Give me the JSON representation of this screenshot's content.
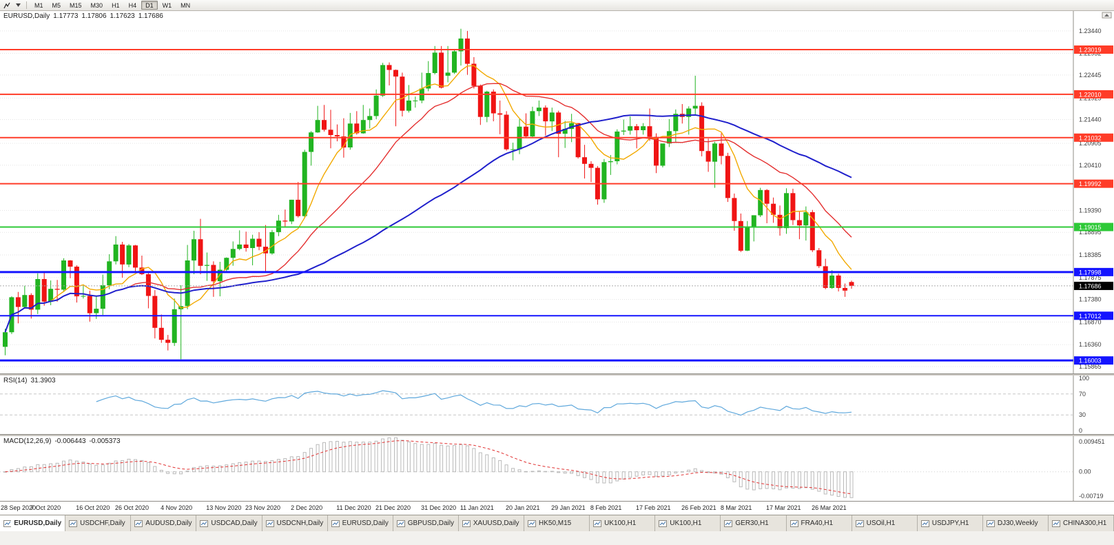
{
  "toolbar": {
    "timeframes": [
      {
        "label": "M1",
        "active": false
      },
      {
        "label": "M5",
        "active": false
      },
      {
        "label": "M15",
        "active": false
      },
      {
        "label": "M30",
        "active": false
      },
      {
        "label": "H1",
        "active": false
      },
      {
        "label": "H4",
        "active": false
      },
      {
        "label": "D1",
        "active": true
      },
      {
        "label": "W1",
        "active": false
      },
      {
        "label": "MN",
        "active": false
      }
    ]
  },
  "header": {
    "symbol": "EURUSD,Daily",
    "open": "1.17773",
    "high": "1.17806",
    "low": "1.17623",
    "close": "1.17686"
  },
  "chart_data": {
    "type": "candlestick",
    "symbol": "EURUSD",
    "timeframe": "Daily",
    "price_top": 1.2389,
    "price_bottom": 1.1571,
    "bull_color": "#21b421",
    "bear_color": "#f01414",
    "price_axis_labels": [
      "1.23440",
      "1.22932",
      "1.22445",
      "1.21925",
      "1.21440",
      "1.20905",
      "1.20410",
      "1.19390",
      "1.18895",
      "1.18385",
      "1.17875",
      "1.17380",
      "1.16870",
      "1.16360",
      "1.15865"
    ],
    "hlines": [
      {
        "price": 1.23019,
        "label": "1.23019",
        "color": "#ff3c28",
        "width": 2
      },
      {
        "price": 1.2201,
        "label": "1.22010",
        "color": "#ff3c28",
        "width": 2
      },
      {
        "price": 1.21032,
        "label": "1.21032",
        "color": "#ff3c28",
        "width": 2
      },
      {
        "price": 1.19992,
        "label": "1.19992",
        "color": "#ff3c28",
        "width": 2
      },
      {
        "price": 1.19015,
        "label": "1.19015",
        "color": "#2dc937",
        "width": 2
      },
      {
        "price": 1.17998,
        "label": "1.17998",
        "color": "#1414ff",
        "width": 3
      },
      {
        "price": 1.17012,
        "label": "1.17012",
        "color": "#1414ff",
        "width": 2
      },
      {
        "price": 1.16003,
        "label": "1.16003",
        "color": "#1414ff",
        "width": 3
      }
    ],
    "current_price": {
      "value": 1.17686,
      "label": "1.17686",
      "bg": "#000000"
    },
    "ma_lines": [
      {
        "name": "ma-fast",
        "period": 8,
        "color": "#f2a900",
        "width": 1.4
      },
      {
        "name": "ma-mid",
        "period": 20,
        "color": "#e43030",
        "width": 1.4
      },
      {
        "name": "ma-slow",
        "period": 50,
        "color": "#2020cc",
        "width": 2
      }
    ],
    "axis_dates": [
      {
        "label": "28 Sep 2020",
        "index": 0
      },
      {
        "label": "7 Oct 2020",
        "index": 7
      },
      {
        "label": "16 Oct 2020",
        "index": 14
      },
      {
        "label": "26 Oct 2020",
        "index": 20
      },
      {
        "label": "4 Nov 2020",
        "index": 27
      },
      {
        "label": "13 Nov 2020",
        "index": 34
      },
      {
        "label": "23 Nov 2020",
        "index": 40
      },
      {
        "label": "2 Dec 2020",
        "index": 47
      },
      {
        "label": "11 Dec 2020",
        "index": 54
      },
      {
        "label": "21 Dec 2020",
        "index": 60
      },
      {
        "label": "31 Dec 2020",
        "index": 67
      },
      {
        "label": "11 Jan 2021",
        "index": 73
      },
      {
        "label": "20 Jan 2021",
        "index": 80
      },
      {
        "label": "29 Jan 2021",
        "index": 87
      },
      {
        "label": "8 Feb 2021",
        "index": 93
      },
      {
        "label": "17 Feb 2021",
        "index": 100
      },
      {
        "label": "26 Feb 2021",
        "index": 107
      },
      {
        "label": "8 Mar 2021",
        "index": 113
      },
      {
        "label": "17 Mar 2021",
        "index": 120
      },
      {
        "label": "26 Mar 2021",
        "index": 127
      }
    ],
    "ohlc": [
      [
        1.1631,
        1.1672,
        1.1612,
        1.1664
      ],
      [
        1.1664,
        1.1745,
        1.166,
        1.1743
      ],
      [
        1.1743,
        1.1755,
        1.1684,
        1.1721
      ],
      [
        1.1721,
        1.1769,
        1.1717,
        1.1748
      ],
      [
        1.1748,
        1.1752,
        1.1695,
        1.1715
      ],
      [
        1.1715,
        1.1797,
        1.1705,
        1.1784
      ],
      [
        1.1784,
        1.1798,
        1.1724,
        1.1733
      ],
      [
        1.1733,
        1.1781,
        1.1725,
        1.1762
      ],
      [
        1.1762,
        1.1782,
        1.1733,
        1.176
      ],
      [
        1.176,
        1.1831,
        1.1755,
        1.1826
      ],
      [
        1.1826,
        1.1827,
        1.1786,
        1.1812
      ],
      [
        1.1812,
        1.1815,
        1.1731,
        1.1745
      ],
      [
        1.1745,
        1.1772,
        1.174,
        1.1746
      ],
      [
        1.1746,
        1.1758,
        1.1688,
        1.1707
      ],
      [
        1.1707,
        1.1746,
        1.1694,
        1.1717
      ],
      [
        1.1717,
        1.1794,
        1.1703,
        1.177
      ],
      [
        1.177,
        1.184,
        1.1761,
        1.1824
      ],
      [
        1.1824,
        1.1881,
        1.1817,
        1.1862
      ],
      [
        1.1862,
        1.1868,
        1.1787,
        1.1817
      ],
      [
        1.1817,
        1.1863,
        1.1811,
        1.186
      ],
      [
        1.186,
        1.1861,
        1.18,
        1.181
      ],
      [
        1.181,
        1.1837,
        1.1793,
        1.1795
      ],
      [
        1.1795,
        1.18,
        1.1718,
        1.1746
      ],
      [
        1.1746,
        1.1759,
        1.165,
        1.1674
      ],
      [
        1.1674,
        1.1704,
        1.164,
        1.1647
      ],
      [
        1.1647,
        1.1658,
        1.1623,
        1.164
      ],
      [
        1.164,
        1.174,
        1.1633,
        1.1716
      ],
      [
        1.1716,
        1.177,
        1.1603,
        1.1723
      ],
      [
        1.1723,
        1.1861,
        1.1716,
        1.1826
      ],
      [
        1.1826,
        1.1893,
        1.1795,
        1.1874
      ],
      [
        1.1874,
        1.192,
        1.1795,
        1.1814
      ],
      [
        1.1814,
        1.1844,
        1.178,
        1.1816
      ],
      [
        1.1816,
        1.1824,
        1.1744,
        1.1779
      ],
      [
        1.1779,
        1.1823,
        1.1745,
        1.1805
      ],
      [
        1.1805,
        1.1833,
        1.1799,
        1.1832
      ],
      [
        1.1832,
        1.1869,
        1.1814,
        1.1852
      ],
      [
        1.1852,
        1.1894,
        1.1849,
        1.1862
      ],
      [
        1.1862,
        1.1891,
        1.1846,
        1.1854
      ],
      [
        1.1854,
        1.1884,
        1.1815,
        1.1875
      ],
      [
        1.1875,
        1.189,
        1.1849,
        1.1857
      ],
      [
        1.1857,
        1.1906,
        1.18,
        1.1842
      ],
      [
        1.1842,
        1.1895,
        1.1839,
        1.189
      ],
      [
        1.189,
        1.1929,
        1.1881,
        1.1916
      ],
      [
        1.1916,
        1.1941,
        1.1903,
        1.1914
      ],
      [
        1.1914,
        1.1963,
        1.1908,
        1.1963
      ],
      [
        1.1963,
        1.2003,
        1.1923,
        1.1926
      ],
      [
        1.1926,
        1.2076,
        1.1922,
        1.2071
      ],
      [
        1.2071,
        1.2118,
        1.204,
        1.2115
      ],
      [
        1.2115,
        1.2175,
        1.2114,
        1.2143
      ],
      [
        1.2143,
        1.2177,
        1.2117,
        1.2121
      ],
      [
        1.2121,
        1.2166,
        1.2079,
        1.2109
      ],
      [
        1.2109,
        1.2133,
        1.2095,
        1.2106
      ],
      [
        1.2106,
        1.2147,
        1.2058,
        1.2081
      ],
      [
        1.2081,
        1.2159,
        1.2076,
        1.2135
      ],
      [
        1.2135,
        1.2163,
        1.211,
        1.2113
      ],
      [
        1.2113,
        1.2177,
        1.2112,
        1.2143
      ],
      [
        1.2143,
        1.2169,
        1.2124,
        1.2152
      ],
      [
        1.2152,
        1.2212,
        1.2145,
        1.2198
      ],
      [
        1.2198,
        1.2272,
        1.2195,
        1.2267
      ],
      [
        1.2267,
        1.2273,
        1.2221,
        1.2256
      ],
      [
        1.2256,
        1.2257,
        1.2129,
        1.2241
      ],
      [
        1.2241,
        1.225,
        1.2151,
        1.2164
      ],
      [
        1.2164,
        1.2222,
        1.216,
        1.2187
      ],
      [
        1.2187,
        1.2196,
        1.2171,
        1.2187
      ],
      [
        1.2187,
        1.225,
        1.2181,
        1.2214
      ],
      [
        1.2214,
        1.2276,
        1.2208,
        1.2249
      ],
      [
        1.2249,
        1.231,
        1.2246,
        1.2295
      ],
      [
        1.2295,
        1.231,
        1.2214,
        1.2216
      ],
      [
        1.2243,
        1.231,
        1.2228,
        1.225
      ],
      [
        1.225,
        1.2303,
        1.2247,
        1.2298
      ],
      [
        1.2298,
        1.2349,
        1.2266,
        1.2327
      ],
      [
        1.2327,
        1.2344,
        1.2245,
        1.227
      ],
      [
        1.227,
        1.2285,
        1.2214,
        1.222
      ],
      [
        1.222,
        1.2223,
        1.2132,
        1.215
      ],
      [
        1.215,
        1.2209,
        1.2138,
        1.2207
      ],
      [
        1.2207,
        1.2212,
        1.214,
        1.2158
      ],
      [
        1.2158,
        1.2187,
        1.2111,
        1.2155
      ],
      [
        1.2155,
        1.2163,
        1.2074,
        1.2077
      ],
      [
        1.2077,
        1.2092,
        1.2052,
        1.2077
      ],
      [
        1.2077,
        1.2145,
        1.2066,
        1.2128
      ],
      [
        1.2128,
        1.2158,
        1.2102,
        1.2106
      ],
      [
        1.2106,
        1.2173,
        1.2102,
        1.2163
      ],
      [
        1.2163,
        1.2187,
        1.2152,
        1.2171
      ],
      [
        1.2171,
        1.2176,
        1.2108,
        1.214
      ],
      [
        1.214,
        1.2171,
        1.2118,
        1.216
      ],
      [
        1.216,
        1.2164,
        1.2059,
        1.2112
      ],
      [
        1.2112,
        1.2141,
        1.208,
        1.2123
      ],
      [
        1.2123,
        1.2157,
        1.2093,
        1.2136
      ],
      [
        1.2136,
        1.2136,
        1.2056,
        1.2059
      ],
      [
        1.2059,
        1.2087,
        1.2011,
        1.2044
      ],
      [
        1.2044,
        1.205,
        1.2003,
        1.2035
      ],
      [
        1.2035,
        1.2039,
        1.1952,
        1.1964
      ],
      [
        1.1964,
        1.2055,
        1.1956,
        1.2048
      ],
      [
        1.2048,
        1.2064,
        1.2019,
        1.205
      ],
      [
        1.205,
        1.2122,
        1.2043,
        1.2117
      ],
      [
        1.2117,
        1.2144,
        1.2109,
        1.2119
      ],
      [
        1.2119,
        1.2151,
        1.211,
        1.2129
      ],
      [
        1.2129,
        1.2134,
        1.2079,
        1.212
      ],
      [
        1.212,
        1.2136,
        1.211,
        1.2129
      ],
      [
        1.2129,
        1.2169,
        1.2096,
        1.2105
      ],
      [
        1.2105,
        1.2113,
        1.2023,
        1.204
      ],
      [
        1.204,
        1.2088,
        1.2036,
        1.209
      ],
      [
        1.209,
        1.2145,
        1.2082,
        1.2118
      ],
      [
        1.2118,
        1.2167,
        1.2094,
        1.2157
      ],
      [
        1.2157,
        1.2179,
        1.2135,
        1.215
      ],
      [
        1.215,
        1.2174,
        1.211,
        1.2169
      ],
      [
        1.2169,
        1.2243,
        1.2155,
        1.2175
      ],
      [
        1.2175,
        1.2183,
        1.2061,
        1.2073
      ],
      [
        1.2073,
        1.2101,
        1.2026,
        1.2049
      ],
      [
        1.2049,
        1.2094,
        1.199,
        1.209
      ],
      [
        1.209,
        1.2113,
        1.2043,
        1.2062
      ],
      [
        1.2062,
        1.2069,
        1.1958,
        1.1967
      ],
      [
        1.1967,
        1.1977,
        1.1893,
        1.1915
      ],
      [
        1.1915,
        1.1932,
        1.1845,
        1.1848
      ],
      [
        1.1848,
        1.1915,
        1.1847,
        1.19
      ],
      [
        1.19,
        1.1928,
        1.1869,
        1.1928
      ],
      [
        1.1928,
        1.199,
        1.1924,
        1.1985
      ],
      [
        1.1985,
        1.1987,
        1.191,
        1.1954
      ],
      [
        1.1954,
        1.1968,
        1.1911,
        1.1929
      ],
      [
        1.1929,
        1.195,
        1.1882,
        1.1899
      ],
      [
        1.1899,
        1.1989,
        1.1886,
        1.1978
      ],
      [
        1.1978,
        1.1988,
        1.1906,
        1.1917
      ],
      [
        1.1917,
        1.1936,
        1.1874,
        1.1905
      ],
      [
        1.1905,
        1.1948,
        1.1871,
        1.1935
      ],
      [
        1.1935,
        1.194,
        1.1845,
        1.1849
      ],
      [
        1.1849,
        1.1854,
        1.1809,
        1.1813
      ],
      [
        1.1813,
        1.183,
        1.1761,
        1.1764
      ],
      [
        1.1764,
        1.1804,
        1.1762,
        1.1792
      ],
      [
        1.1792,
        1.1796,
        1.1756,
        1.1764
      ],
      [
        1.1764,
        1.1774,
        1.1744,
        1.1758
      ],
      [
        1.17773,
        1.17806,
        1.17623,
        1.17686
      ]
    ],
    "rsi": {
      "label": "RSI(14)",
      "value": "31.3903",
      "period": 14,
      "levels": [
        "100",
        "70",
        "30",
        "0"
      ],
      "line_color": "#5fa8dc"
    },
    "macd": {
      "label": "MACD(12,26,9)",
      "value_main": "-0.006443",
      "value_signal": "-0.005373",
      "fast": 12,
      "slow": 26,
      "signal": 9,
      "scale_labels": [
        "0.009451",
        "0.00",
        "-0.00719"
      ],
      "scale_max": 0.009451,
      "scale_min": -0.00719,
      "hist_color": "#b9b9b9",
      "signal_color": "#e03030"
    }
  },
  "tabs": [
    {
      "label": "EURUSD,Daily",
      "active": true
    },
    {
      "label": "USDCHF,Daily",
      "active": false
    },
    {
      "label": "AUDUSD,Daily",
      "active": false
    },
    {
      "label": "USDCAD,Daily",
      "active": false
    },
    {
      "label": "USDCNH,Daily",
      "active": false
    },
    {
      "label": "EURUSD,Daily",
      "active": false
    },
    {
      "label": "GBPUSD,Daily",
      "active": false
    },
    {
      "label": "XAUUSD,Daily",
      "active": false
    },
    {
      "label": "HK50,M15",
      "active": false
    },
    {
      "label": "UK100,H1",
      "active": false
    },
    {
      "label": "UK100,H1",
      "active": false
    },
    {
      "label": "GER30,H1",
      "active": false
    },
    {
      "label": "FRA40,H1",
      "active": false
    },
    {
      "label": "USOil,H1",
      "active": false
    },
    {
      "label": "USDJPY,H1",
      "active": false
    },
    {
      "label": "DJ30,Weekly",
      "active": false
    },
    {
      "label": "CHINA300,H1",
      "active": false
    }
  ]
}
